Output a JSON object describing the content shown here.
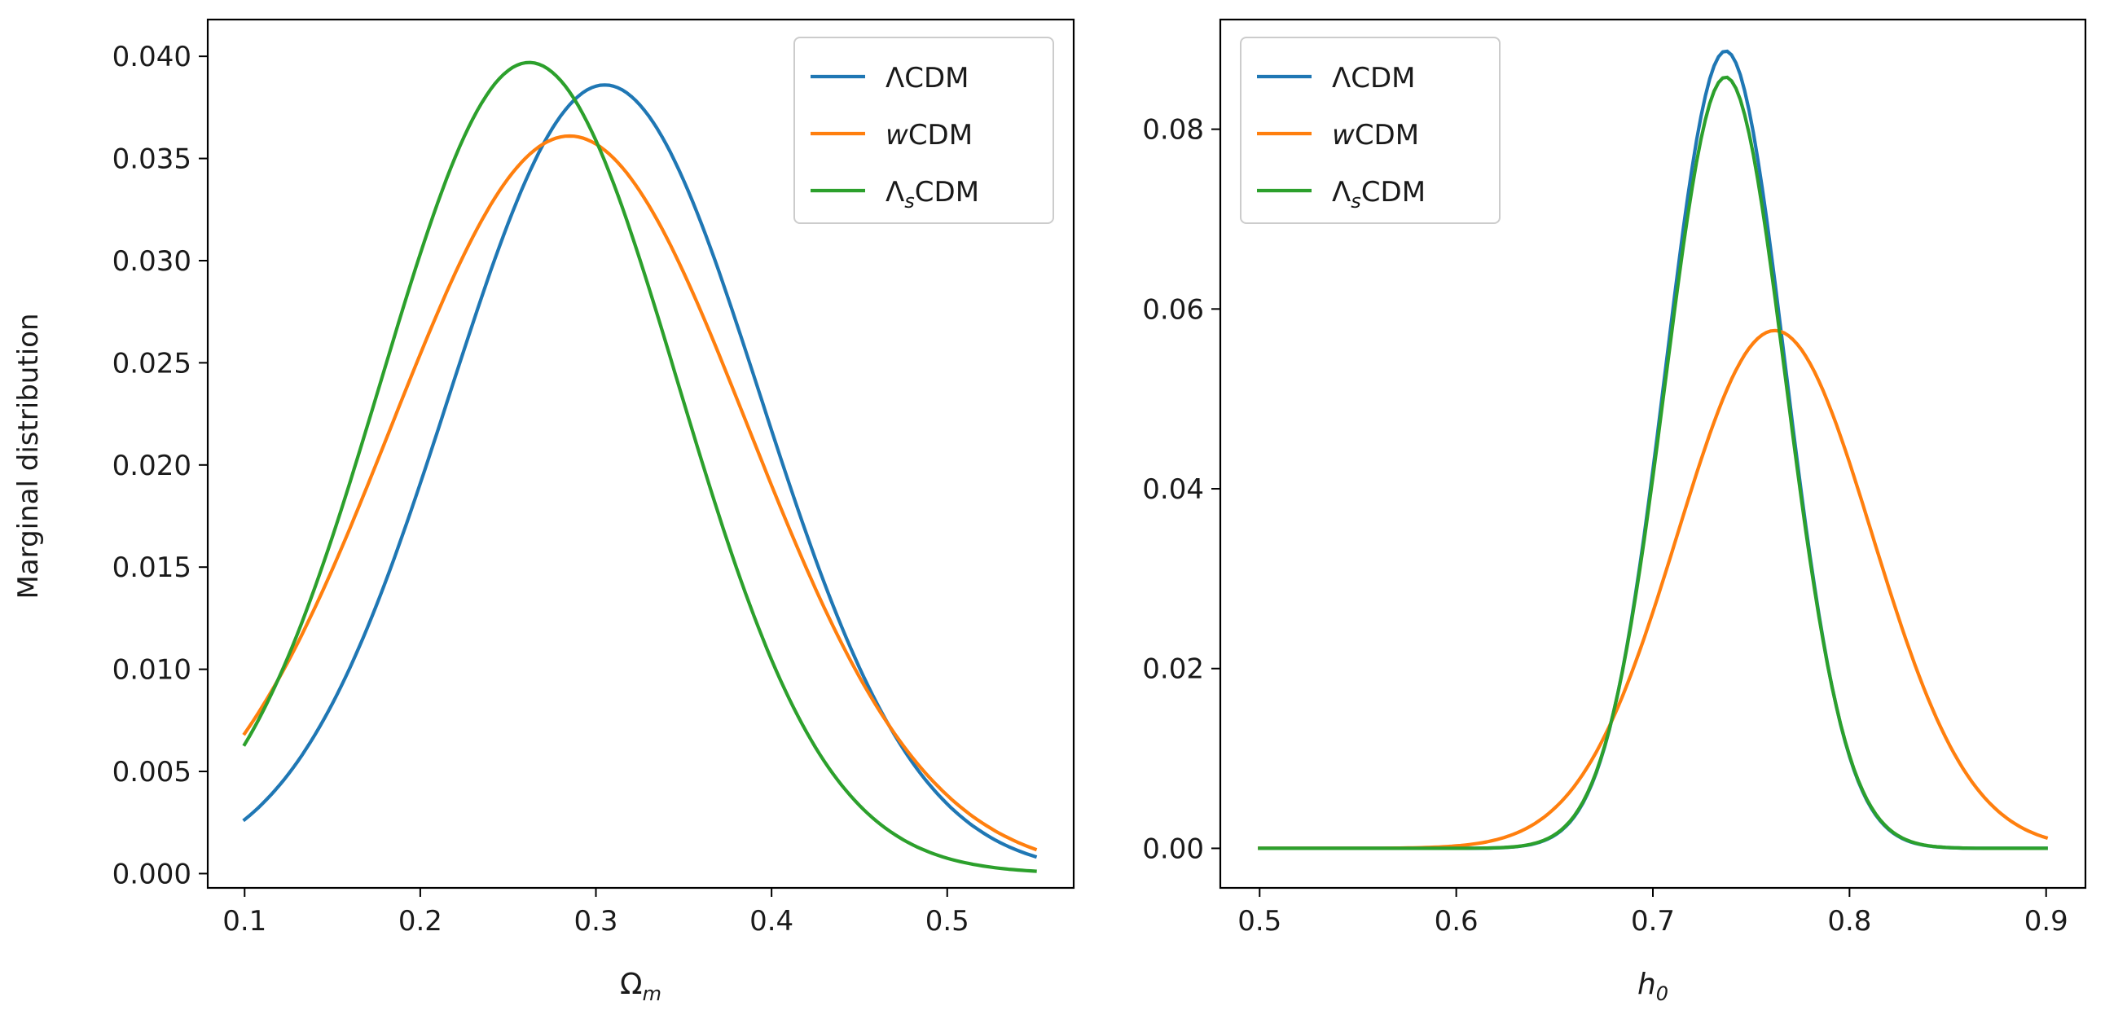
{
  "figure": {
    "ylabel": "Marginal distribution"
  },
  "colors": {
    "lcdm": "#1f77b4",
    "wcdm": "#ff7f0e",
    "lscdm": "#2ca02c",
    "legend_border": "#cccccc",
    "axis": "#000000"
  },
  "legend": [
    {
      "key": "lcdm",
      "label_pre": "Λ",
      "label_sub": "",
      "label_post": "CDM"
    },
    {
      "key": "wcdm",
      "label_pre": "w",
      "label_sub": "",
      "label_post": "CDM",
      "italic_pre": true
    },
    {
      "key": "lscdm",
      "label_pre": "Λ",
      "label_sub": "s",
      "label_post": "CDM"
    }
  ],
  "chart_data": [
    {
      "type": "line",
      "panel": "left",
      "title": "",
      "xlabel_main": "Ω",
      "xlabel_sub": "m",
      "ylabel": "Marginal distribution",
      "xlim": [
        0.079,
        0.572
      ],
      "ylim": [
        -0.0007,
        0.0418
      ],
      "xticks": [
        0.1,
        0.2,
        0.3,
        0.4,
        0.5
      ],
      "xtick_labels": [
        "0.1",
        "0.2",
        "0.3",
        "0.4",
        "0.5"
      ],
      "yticks": [
        0.0,
        0.005,
        0.01,
        0.015,
        0.02,
        0.025,
        0.03,
        0.035,
        0.04
      ],
      "ytick_labels": [
        "0.000",
        "0.005",
        "0.010",
        "0.015",
        "0.020",
        "0.025",
        "0.030",
        "0.035",
        "0.040"
      ],
      "legend_position": "top-right",
      "series": [
        {
          "key": "lcdm",
          "name": "ΛCDM",
          "shape": "gaussian",
          "x_range": [
            0.1,
            0.55
          ],
          "peak_x": 0.305,
          "peak_y": 0.0386,
          "sigma": 0.0885
        },
        {
          "key": "wcdm",
          "name": "wCDM",
          "shape": "gaussian",
          "x_range": [
            0.1,
            0.55
          ],
          "peak_x": 0.285,
          "peak_y": 0.0361,
          "sigma": 0.1015
        },
        {
          "key": "lscdm",
          "name": "ΛsCDM",
          "shape": "gaussian",
          "x_range": [
            0.1,
            0.55
          ],
          "peak_x": 0.262,
          "peak_y": 0.0397,
          "sigma": 0.0845
        }
      ]
    },
    {
      "type": "line",
      "panel": "right",
      "title": "",
      "xlabel_main": "h",
      "xlabel_sub": "0",
      "ylabel": "",
      "xlim": [
        0.48,
        0.92
      ],
      "ylim": [
        -0.0044,
        0.0922
      ],
      "xticks": [
        0.5,
        0.6,
        0.7,
        0.8,
        0.9
      ],
      "xtick_labels": [
        "0.5",
        "0.6",
        "0.7",
        "0.8",
        "0.9"
      ],
      "yticks": [
        0.0,
        0.02,
        0.04,
        0.06,
        0.08
      ],
      "ytick_labels": [
        "0.00",
        "0.02",
        "0.04",
        "0.06",
        "0.08"
      ],
      "legend_position": "top-left",
      "series": [
        {
          "key": "lcdm",
          "name": "ΛCDM",
          "shape": "gaussian",
          "x_range": [
            0.5,
            0.9
          ],
          "peak_x": 0.737,
          "peak_y": 0.0887,
          "sigma": 0.0303
        },
        {
          "key": "wcdm",
          "name": "wCDM",
          "shape": "gaussian",
          "x_range": [
            0.5,
            0.9
          ],
          "peak_x": 0.762,
          "peak_y": 0.0576,
          "sigma": 0.0495
        },
        {
          "key": "lscdm",
          "name": "ΛsCDM",
          "shape": "gaussian",
          "x_range": [
            0.5,
            0.9
          ],
          "peak_x": 0.737,
          "peak_y": 0.0858,
          "sigma": 0.0306
        }
      ]
    }
  ]
}
